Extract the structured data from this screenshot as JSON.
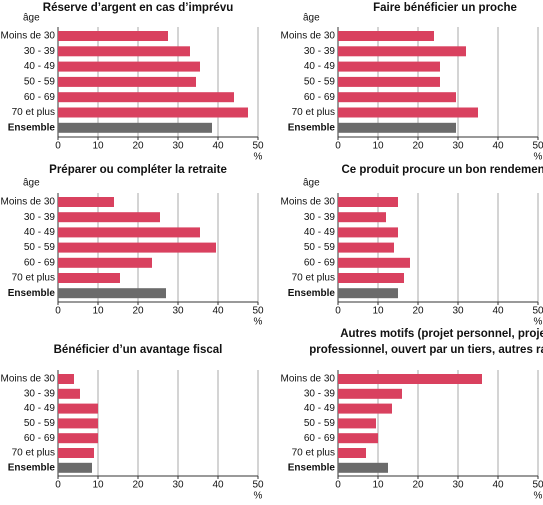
{
  "chart_data": [
    {
      "type": "bar",
      "orientation": "horizontal",
      "title": [
        "Réserve d’argent en cas d’imprévu"
      ],
      "y_label": "âge",
      "x_label": "%",
      "categories": [
        "Moins de 30",
        "30 - 39",
        "40 - 49",
        "50 - 59",
        "60 - 69",
        "70 et plus",
        "Ensemble"
      ],
      "values": [
        27.5,
        33,
        35.5,
        34.5,
        44,
        47.5,
        38.5
      ],
      "colors": [
        "#d9415f",
        "#d9415f",
        "#d9415f",
        "#d9415f",
        "#d9415f",
        "#d9415f",
        "#6b6b6b"
      ],
      "xlim": [
        0,
        50
      ],
      "xticks": [
        0,
        10,
        20,
        30,
        40,
        50
      ],
      "grid": true
    },
    {
      "type": "bar",
      "orientation": "horizontal",
      "title": [
        "Faire bénéficier un proche"
      ],
      "y_label": "âge",
      "x_label": "%",
      "categories": [
        "Moins de 30",
        "30 - 39",
        "40 - 49",
        "50 - 59",
        "60 - 69",
        "70 et plus",
        "Ensemble"
      ],
      "values": [
        24,
        32,
        25.5,
        25.5,
        29.5,
        35,
        29.5
      ],
      "colors": [
        "#d9415f",
        "#d9415f",
        "#d9415f",
        "#d9415f",
        "#d9415f",
        "#d9415f",
        "#6b6b6b"
      ],
      "xlim": [
        0,
        50
      ],
      "xticks": [
        0,
        10,
        20,
        30,
        40,
        50
      ],
      "grid": true
    },
    {
      "type": "bar",
      "orientation": "horizontal",
      "title": [
        "Préparer ou compléter la retraite"
      ],
      "y_label": "âge",
      "x_label": "%",
      "categories": [
        "Moins de 30",
        "30 - 39",
        "40 - 49",
        "50 - 59",
        "60 - 69",
        "70 et plus",
        "Ensemble"
      ],
      "values": [
        14,
        25.5,
        35.5,
        39.5,
        23.5,
        15.5,
        27
      ],
      "colors": [
        "#d9415f",
        "#d9415f",
        "#d9415f",
        "#d9415f",
        "#d9415f",
        "#d9415f",
        "#6b6b6b"
      ],
      "xlim": [
        0,
        50
      ],
      "xticks": [
        0,
        10,
        20,
        30,
        40,
        50
      ],
      "grid": true
    },
    {
      "type": "bar",
      "orientation": "horizontal",
      "title": [
        "Ce produit procure un bon rendement"
      ],
      "y_label": "âge",
      "x_label": "%",
      "categories": [
        "Moins de 30",
        "30 - 39",
        "40 - 49",
        "50 - 59",
        "60 - 69",
        "70 et plus",
        "Ensemble"
      ],
      "values": [
        15,
        12,
        15,
        14,
        18,
        16.5,
        15
      ],
      "colors": [
        "#d9415f",
        "#d9415f",
        "#d9415f",
        "#d9415f",
        "#d9415f",
        "#d9415f",
        "#6b6b6b"
      ],
      "xlim": [
        0,
        50
      ],
      "xticks": [
        0,
        10,
        20,
        30,
        40,
        50
      ],
      "grid": true
    },
    {
      "type": "bar",
      "orientation": "horizontal",
      "title": [
        "Bénéficier d’un avantage fiscal"
      ],
      "x_label": "%",
      "categories": [
        "Moins de 30",
        "30 - 39",
        "40 - 49",
        "50 - 59",
        "60 - 69",
        "70 et plus",
        "Ensemble"
      ],
      "values": [
        4,
        5.5,
        10,
        10,
        10,
        9,
        8.5
      ],
      "colors": [
        "#d9415f",
        "#d9415f",
        "#d9415f",
        "#d9415f",
        "#d9415f",
        "#d9415f",
        "#6b6b6b"
      ],
      "xlim": [
        0,
        50
      ],
      "xticks": [
        0,
        10,
        20,
        30,
        40,
        50
      ],
      "grid": true
    },
    {
      "type": "bar",
      "orientation": "horizontal",
      "title": [
        "Autres motifs (projet personnel, projet",
        "professionnel, ouvert par un tiers, autres raisons)"
      ],
      "x_label": "%",
      "categories": [
        "Moins de 30",
        "30 - 39",
        "40 - 49",
        "50 - 59",
        "60 - 69",
        "70 et plus",
        "Ensemble"
      ],
      "values": [
        36,
        16,
        13.5,
        9.5,
        10,
        7,
        12.5
      ],
      "colors": [
        "#d9415f",
        "#d9415f",
        "#d9415f",
        "#d9415f",
        "#d9415f",
        "#d9415f",
        "#6b6b6b"
      ],
      "xlim": [
        0,
        50
      ],
      "xticks": [
        0,
        10,
        20,
        30,
        40,
        50
      ],
      "grid": true
    }
  ]
}
